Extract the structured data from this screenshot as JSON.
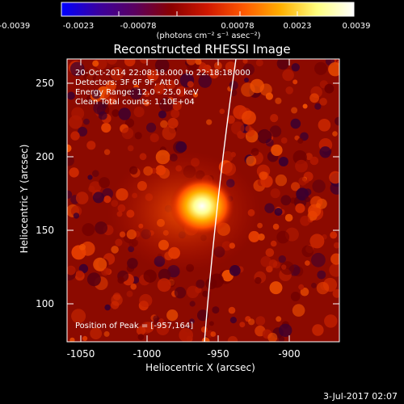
{
  "colorbar": {
    "ticks": [
      "-0.0039",
      "-0.0023",
      "-0.00078",
      "0.00078",
      "0.0023",
      "0.0039"
    ],
    "units": "(photons cm⁻² s⁻¹ asec⁻²)",
    "colors": [
      "#0000ff",
      "#3a00a0",
      "#5a0060",
      "#8a0000",
      "#d01800",
      "#ff5a00",
      "#ffb000",
      "#ffff80",
      "#ffffff"
    ]
  },
  "plot": {
    "title": "Reconstructed RHESSI Image",
    "info_lines": [
      "20-Oct-2014 22:08:18.000 to 22:18:18.000",
      "Detectors: 3F 6F 9F, Att 0",
      "Energy Range: 12.0 - 25.0 keV",
      "Clean    Total counts: 1.10E+04"
    ],
    "peak_label": "Position of Peak = [-957,164]",
    "xlabel": "Heliocentric X (arcsec)",
    "ylabel": "Heliocentric Y (arcsec)",
    "xticks": [
      "-1050",
      "-1000",
      "-950",
      "-900"
    ],
    "yticks": [
      "250",
      "200",
      "150",
      "100"
    ],
    "xrange": [
      -1070,
      -865
    ],
    "yrange": [
      70,
      268
    ]
  },
  "footer": {
    "date": "3-Jul-2017 02:07"
  }
}
